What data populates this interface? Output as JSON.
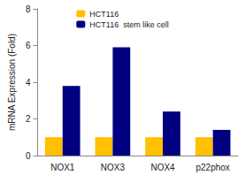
{
  "chart_data": {
    "type": "bar",
    "categories": [
      "NOX1",
      "NOX3",
      "NOX4",
      "p22phox"
    ],
    "series": [
      {
        "name": "HCT116",
        "color": "#FFC000",
        "values": [
          1,
          1,
          1,
          1
        ]
      },
      {
        "name": "HCT116  stem like cell",
        "color": "#000080",
        "values": [
          3.8,
          5.9,
          2.4,
          1.4
        ]
      }
    ],
    "y_label": "mRNA Expression (Fold)",
    "ylim": [
      0,
      8
    ],
    "yticks": [
      0,
      2,
      4,
      6,
      8
    ],
    "grid": false,
    "legend": "upper center"
  }
}
